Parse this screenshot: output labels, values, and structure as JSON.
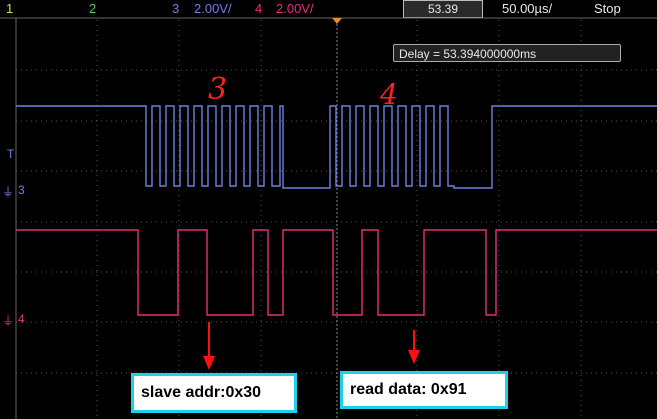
{
  "header": {
    "ch1_label": "1",
    "ch2_label": "2",
    "ch3_label": "3",
    "ch3_scale": "2.00V/",
    "ch4_label": "4",
    "ch4_scale": "2.00V/",
    "time_delay": "53.39",
    "timebase": "50.00µs/",
    "run_state": "Stop"
  },
  "delay_readout": "Delay = 53.394000000ms",
  "markers": {
    "trigger": "T",
    "ch3": "3",
    "ch4": "4"
  },
  "handwriting": {
    "ch3_group": "3",
    "ch4_group": "4"
  },
  "annotations": {
    "slave_addr": "slave addr:0x30",
    "read_data": "read data: 0x91"
  },
  "colors": {
    "ch1": "#e8d84a",
    "ch2": "#55cc55",
    "ch3": "#6f7fe0",
    "ch4": "#e0307d",
    "grid": "#555555",
    "annotation_border": "#1fd0e8",
    "arrow": "#ff0000"
  }
}
